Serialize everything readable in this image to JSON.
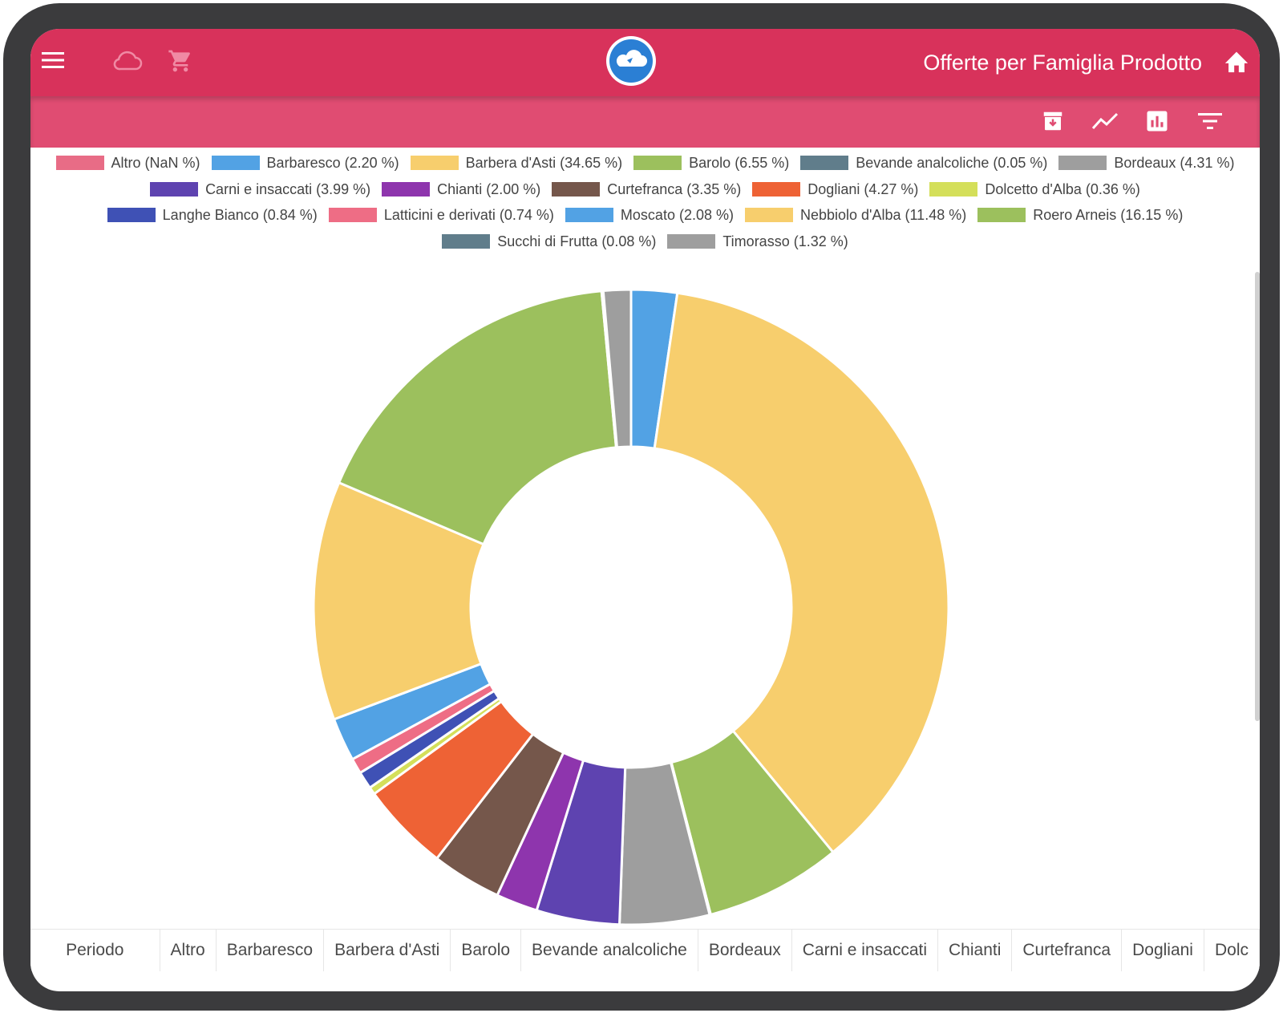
{
  "header": {
    "title": "Offerte per Famiglia Prodotto",
    "icons": [
      "menu-icon",
      "cloud-icon",
      "cart-icon",
      "logo-icon",
      "home-icon"
    ],
    "accent": "#d8325b",
    "toolbar_color": "#e04c72"
  },
  "toolbar": {
    "icons": [
      "archive-download-icon",
      "line-chart-icon",
      "bar-chart-icon",
      "filter-icon"
    ]
  },
  "chart_data": {
    "type": "pie",
    "donut": true,
    "legend_rows": [
      [
        0,
        1,
        2,
        3,
        4,
        5
      ],
      [
        6,
        7,
        8,
        9,
        10
      ],
      [
        11,
        12,
        13,
        14,
        15
      ],
      [
        16,
        17
      ]
    ],
    "series": [
      {
        "name": "Altro",
        "legend": "Altro (NaN %)",
        "value": null,
        "color": "#e86c86"
      },
      {
        "name": "Barbaresco",
        "legend": "Barbaresco (2.20 %)",
        "value": 2.2,
        "color": "#52a2e4"
      },
      {
        "name": "Barbera d'Asti",
        "legend": "Barbera d'Asti (34.65 %)",
        "value": 34.65,
        "color": "#f7ce6d"
      },
      {
        "name": "Barolo",
        "legend": "Barolo (6.55 %)",
        "value": 6.55,
        "color": "#9cc05d"
      },
      {
        "name": "Bevande analcoliche",
        "legend": "Bevande analcoliche (0.05 %)",
        "value": 0.05,
        "color": "#607d8b"
      },
      {
        "name": "Bordeaux",
        "legend": "Bordeaux (4.31 %)",
        "value": 4.31,
        "color": "#9e9e9e"
      },
      {
        "name": "Carni e insaccati",
        "legend": "Carni e insaccati (3.99 %)",
        "value": 3.99,
        "color": "#5e43b0"
      },
      {
        "name": "Chianti",
        "legend": "Chianti (2.00 %)",
        "value": 2.0,
        "color": "#8e35ad"
      },
      {
        "name": "Curtefranca",
        "legend": "Curtefranca  (3.35 %)",
        "value": 3.35,
        "color": "#75574b"
      },
      {
        "name": "Dogliani",
        "legend": "Dogliani (4.27 %)",
        "value": 4.27,
        "color": "#ee6235"
      },
      {
        "name": "Dolcetto d'Alba",
        "legend": "Dolcetto d'Alba (0.36 %)",
        "value": 0.36,
        "color": "#d4df5a"
      },
      {
        "name": "Langhe Bianco",
        "legend": "Langhe Bianco (0.84 %)",
        "value": 0.84,
        "color": "#3f51b5"
      },
      {
        "name": "Latticini e derivati",
        "legend": "Latticini e derivati (0.74 %)",
        "value": 0.74,
        "color": "#ee6d85"
      },
      {
        "name": "Moscato",
        "legend": "Moscato (2.08 %)",
        "value": 2.08,
        "color": "#52a2e4"
      },
      {
        "name": "Nebbiolo d'Alba",
        "legend": "Nebbiolo d'Alba (11.48 %)",
        "value": 11.48,
        "color": "#f7ce6d"
      },
      {
        "name": "Roero Arneis",
        "legend": "Roero Arneis (16.15 %)",
        "value": 16.15,
        "color": "#9cc05d"
      },
      {
        "name": "Succhi di Frutta",
        "legend": "Succhi di Frutta (0.08 %)",
        "value": 0.08,
        "color": "#607d8b"
      },
      {
        "name": "Timorasso",
        "legend": "Timorasso (1.32 %)",
        "value": 1.32,
        "color": "#9e9e9e"
      }
    ]
  },
  "table": {
    "columns": [
      "Periodo",
      "Altro",
      "Barbaresco",
      "Barbera d'Asti",
      "Barolo",
      "Bevande analcoliche",
      "Bordeaux",
      "Carni e insaccati",
      "Chianti",
      "Curtefranca",
      "Dogliani",
      "Dolc"
    ]
  }
}
